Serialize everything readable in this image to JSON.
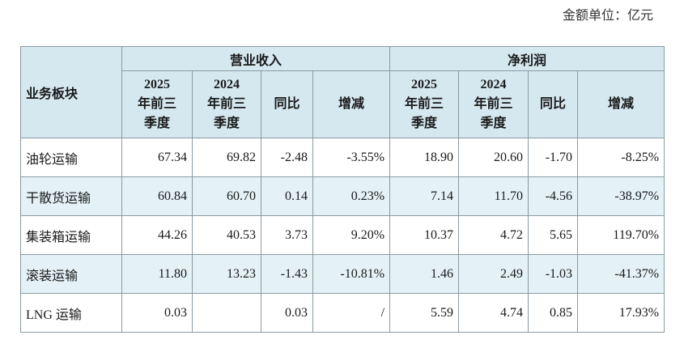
{
  "unit_label": "金额单位：亿元",
  "table": {
    "corner": "业务板块",
    "groups": [
      "营业收入",
      "净利润"
    ],
    "subheaders": [
      [
        "2025",
        "年前三",
        "季度"
      ],
      [
        "2024",
        "年前三",
        "季度"
      ],
      [
        "同比"
      ],
      [
        "增减"
      ],
      [
        "2025",
        "年前三",
        "季度"
      ],
      [
        "2024",
        "年前三",
        "季度"
      ],
      [
        "同比"
      ],
      [
        "增减"
      ]
    ],
    "rows": [
      [
        "油轮运输",
        "67.34",
        "69.82",
        "-2.48",
        "-3.55%",
        "18.90",
        "20.60",
        "-1.70",
        "-8.25%"
      ],
      [
        "干散货运输",
        "60.84",
        "60.70",
        "0.14",
        "0.23%",
        "7.14",
        "11.70",
        "-4.56",
        "-38.97%"
      ],
      [
        "集装箱运输",
        "44.26",
        "40.53",
        "3.73",
        "9.20%",
        "10.37",
        "4.72",
        "5.65",
        "119.70%"
      ],
      [
        "滚装运输",
        "11.80",
        "13.23",
        "-1.43",
        "-10.81%",
        "1.46",
        "2.49",
        "-1.03",
        "-41.37%"
      ],
      [
        "LNG 运输",
        "0.03",
        null,
        "0.03",
        "/",
        "5.59",
        "4.74",
        "0.85",
        "17.93%"
      ]
    ]
  }
}
